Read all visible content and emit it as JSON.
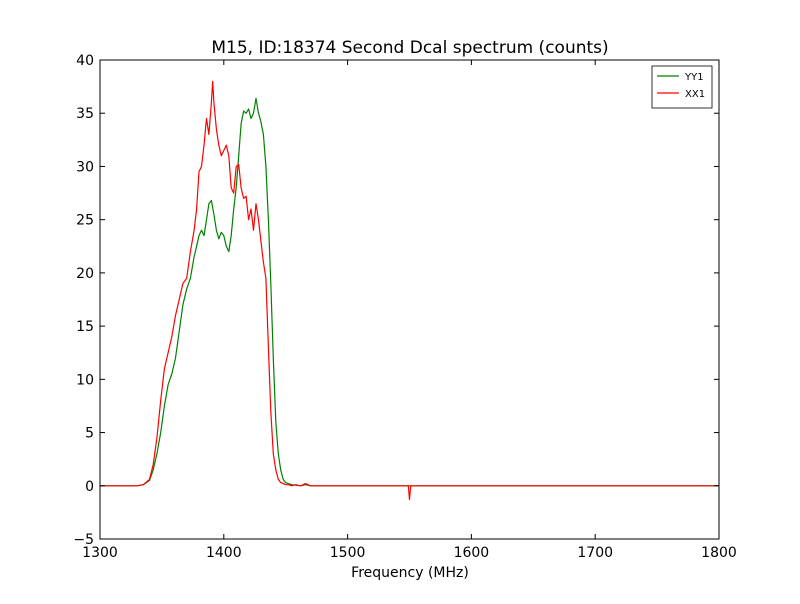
{
  "chart_data": {
    "type": "line",
    "title": "M15, ID:18374 Second Dcal spectrum (counts)",
    "xlabel": "Frequency (MHz)",
    "ylabel": "",
    "xlim": [
      1300,
      1800
    ],
    "ylim": [
      -5,
      40
    ],
    "xticks": [
      1300,
      1400,
      1500,
      1600,
      1700,
      1800
    ],
    "yticks": [
      -5,
      0,
      5,
      10,
      15,
      20,
      25,
      30,
      35,
      40
    ],
    "ytick_labels": [
      "−5",
      "0",
      "5",
      "10",
      "15",
      "20",
      "25",
      "30",
      "35",
      "40"
    ],
    "grid": false,
    "legend_position": "top-right",
    "series": [
      {
        "name": "YY1",
        "color": "#008000",
        "x": [
          1300,
          1330,
          1335,
          1340,
          1343,
          1346,
          1349,
          1352,
          1355,
          1358,
          1361,
          1364,
          1367,
          1370,
          1373,
          1376,
          1378,
          1380,
          1382,
          1384,
          1386,
          1388,
          1390,
          1392,
          1394,
          1396,
          1398,
          1400,
          1402,
          1404,
          1406,
          1408,
          1410,
          1412,
          1414,
          1416,
          1418,
          1420,
          1422,
          1424,
          1426,
          1428,
          1430,
          1432,
          1434,
          1436,
          1438,
          1440,
          1442,
          1444,
          1446,
          1448,
          1450,
          1452,
          1455,
          1458,
          1462,
          1466,
          1470,
          1480,
          1550,
          1650,
          1800
        ],
        "y": [
          0,
          0,
          0.1,
          0.5,
          1.5,
          3,
          5,
          7.5,
          9.5,
          10.5,
          12,
          14.5,
          17,
          18.5,
          19.5,
          21.5,
          22.5,
          23.5,
          24,
          23.5,
          25,
          26.5,
          26.8,
          25.5,
          24,
          23.2,
          23.8,
          23.5,
          22.5,
          22,
          23.5,
          26,
          28,
          31,
          34,
          35.2,
          35,
          35.4,
          34.5,
          35,
          36.4,
          35,
          34.2,
          33,
          30,
          25,
          19,
          12,
          6,
          3,
          1.5,
          0.6,
          0.3,
          0.2,
          0.1,
          0.05,
          0,
          0.1,
          0,
          0,
          0,
          0,
          0
        ]
      },
      {
        "name": "XX1",
        "color": "#ff0000",
        "x": [
          1300,
          1330,
          1335,
          1340,
          1343,
          1346,
          1349,
          1352,
          1355,
          1358,
          1361,
          1364,
          1367,
          1370,
          1373,
          1376,
          1378,
          1380,
          1382,
          1384,
          1386,
          1388,
          1390,
          1391,
          1392,
          1394,
          1396,
          1398,
          1400,
          1402,
          1404,
          1406,
          1408,
          1410,
          1412,
          1414,
          1416,
          1418,
          1420,
          1422,
          1424,
          1426,
          1428,
          1430,
          1432,
          1434,
          1436,
          1438,
          1440,
          1442,
          1444,
          1446,
          1448,
          1450,
          1452,
          1455,
          1458,
          1462,
          1466,
          1470,
          1480,
          1549,
          1550,
          1551,
          1650,
          1800
        ],
        "y": [
          0,
          0,
          0.1,
          0.6,
          2,
          4.5,
          8,
          11,
          12.5,
          14,
          16,
          17.5,
          19,
          19.5,
          22,
          24,
          26,
          29.5,
          30,
          32,
          34.5,
          33,
          36,
          38,
          36,
          33.5,
          32,
          31,
          31.5,
          32,
          31,
          28,
          27.5,
          30,
          30.2,
          28,
          27,
          27.2,
          25,
          26,
          24,
          26.5,
          25,
          23,
          21,
          19.5,
          13,
          7,
          3,
          1.5,
          0.6,
          0.3,
          0.2,
          0.1,
          0.1,
          0,
          0.1,
          0,
          0.2,
          0,
          0,
          0,
          -1.3,
          0,
          0,
          0
        ]
      }
    ]
  }
}
